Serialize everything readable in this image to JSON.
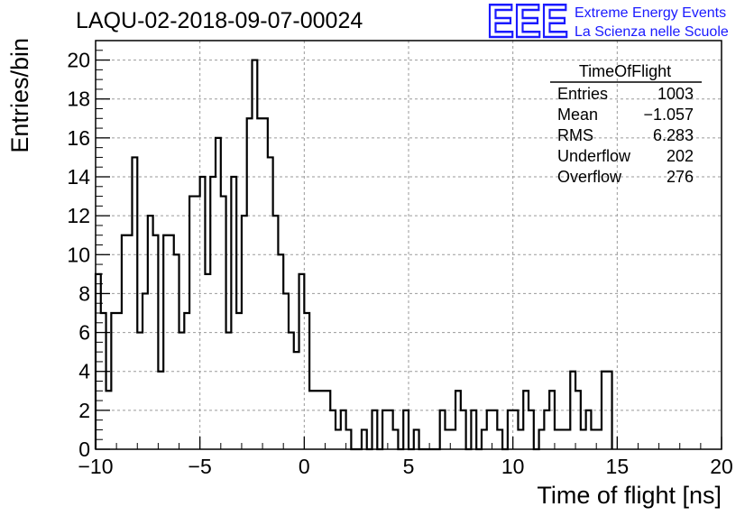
{
  "chart_data": {
    "type": "bar",
    "title": "LAQU-02-2018-09-07-00024",
    "xlabel": "Time of flight [ns]",
    "ylabel": "Entries/bin",
    "xlim": [
      -10,
      20
    ],
    "ylim": [
      0,
      21
    ],
    "xticks": [
      "−10",
      "−5",
      "0",
      "5",
      "10",
      "15",
      "20"
    ],
    "yticks": [
      "0",
      "2",
      "4",
      "6",
      "8",
      "10",
      "12",
      "14",
      "16",
      "18",
      "20"
    ],
    "grid": true,
    "bin_width": 0.25,
    "values": [
      9,
      7,
      3,
      7,
      7,
      11,
      11,
      15,
      6,
      8,
      12,
      11,
      4,
      11,
      11,
      10,
      6,
      7,
      13,
      13,
      14,
      9,
      14,
      16,
      13,
      6,
      14,
      7,
      12,
      17,
      20,
      17,
      17,
      15,
      12,
      10,
      8,
      6,
      5,
      9,
      7,
      3,
      3,
      3,
      3,
      2,
      1,
      2,
      1,
      0,
      0,
      1,
      0,
      2,
      0,
      2,
      2,
      1,
      0,
      2,
      0,
      1,
      0,
      0,
      0,
      0,
      2,
      1,
      1,
      3,
      2,
      0,
      2,
      0,
      1,
      2,
      2,
      1,
      0,
      2,
      2,
      1,
      3,
      2,
      0,
      1,
      2,
      3,
      1,
      1,
      1,
      4,
      3,
      1,
      2,
      1,
      1,
      4,
      4
    ]
  },
  "stats": {
    "title": "TimeOfFlight",
    "rows": [
      {
        "label": "Entries",
        "value": "1003"
      },
      {
        "label": "Mean",
        "value": "−1.057"
      },
      {
        "label": "RMS",
        "value": "6.283"
      },
      {
        "label": "Underflow",
        "value": "202"
      },
      {
        "label": "Overflow",
        "value": "276"
      }
    ]
  },
  "logo": {
    "mark": "EEE",
    "line1": "Extreme Energy Events",
    "line2": "La Scienza nelle Scuole",
    "color": "#1a1aff"
  }
}
